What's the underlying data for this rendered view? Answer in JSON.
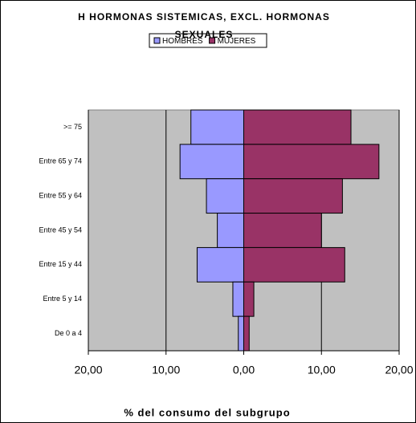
{
  "chart_data": {
    "type": "pyramid",
    "title": "H HORMONAS SISTEMICAS, EXCL. HORMONAS SEXUALES",
    "x_label": "% del consumo del subgrupo",
    "categories": [
      ">= 75",
      "Entre 65 y 74",
      "Entre 55 y 64",
      "Entre 45 y 54",
      "Entre 15 y 44",
      "Entre 5 y 14",
      "De 0 a 4"
    ],
    "series": [
      {
        "name": "HOMBRES",
        "color": "#9999ff",
        "values": [
          -6.8,
          -8.2,
          -4.8,
          -3.4,
          -6.0,
          -1.4,
          -0.7
        ]
      },
      {
        "name": "MUJERES",
        "color": "#993366",
        "values": [
          13.8,
          17.4,
          12.7,
          10.0,
          13.0,
          1.3,
          0.7
        ]
      }
    ],
    "xlim": [
      -20,
      20
    ],
    "xticks": [
      {
        "value": -20,
        "label": "20,00"
      },
      {
        "value": -10,
        "label": "10,00"
      },
      {
        "value": 0,
        "label": "0,00"
      },
      {
        "value": 10,
        "label": "10,00"
      },
      {
        "value": 20,
        "label": "20,00"
      }
    ],
    "grid": true,
    "legend": "top"
  }
}
